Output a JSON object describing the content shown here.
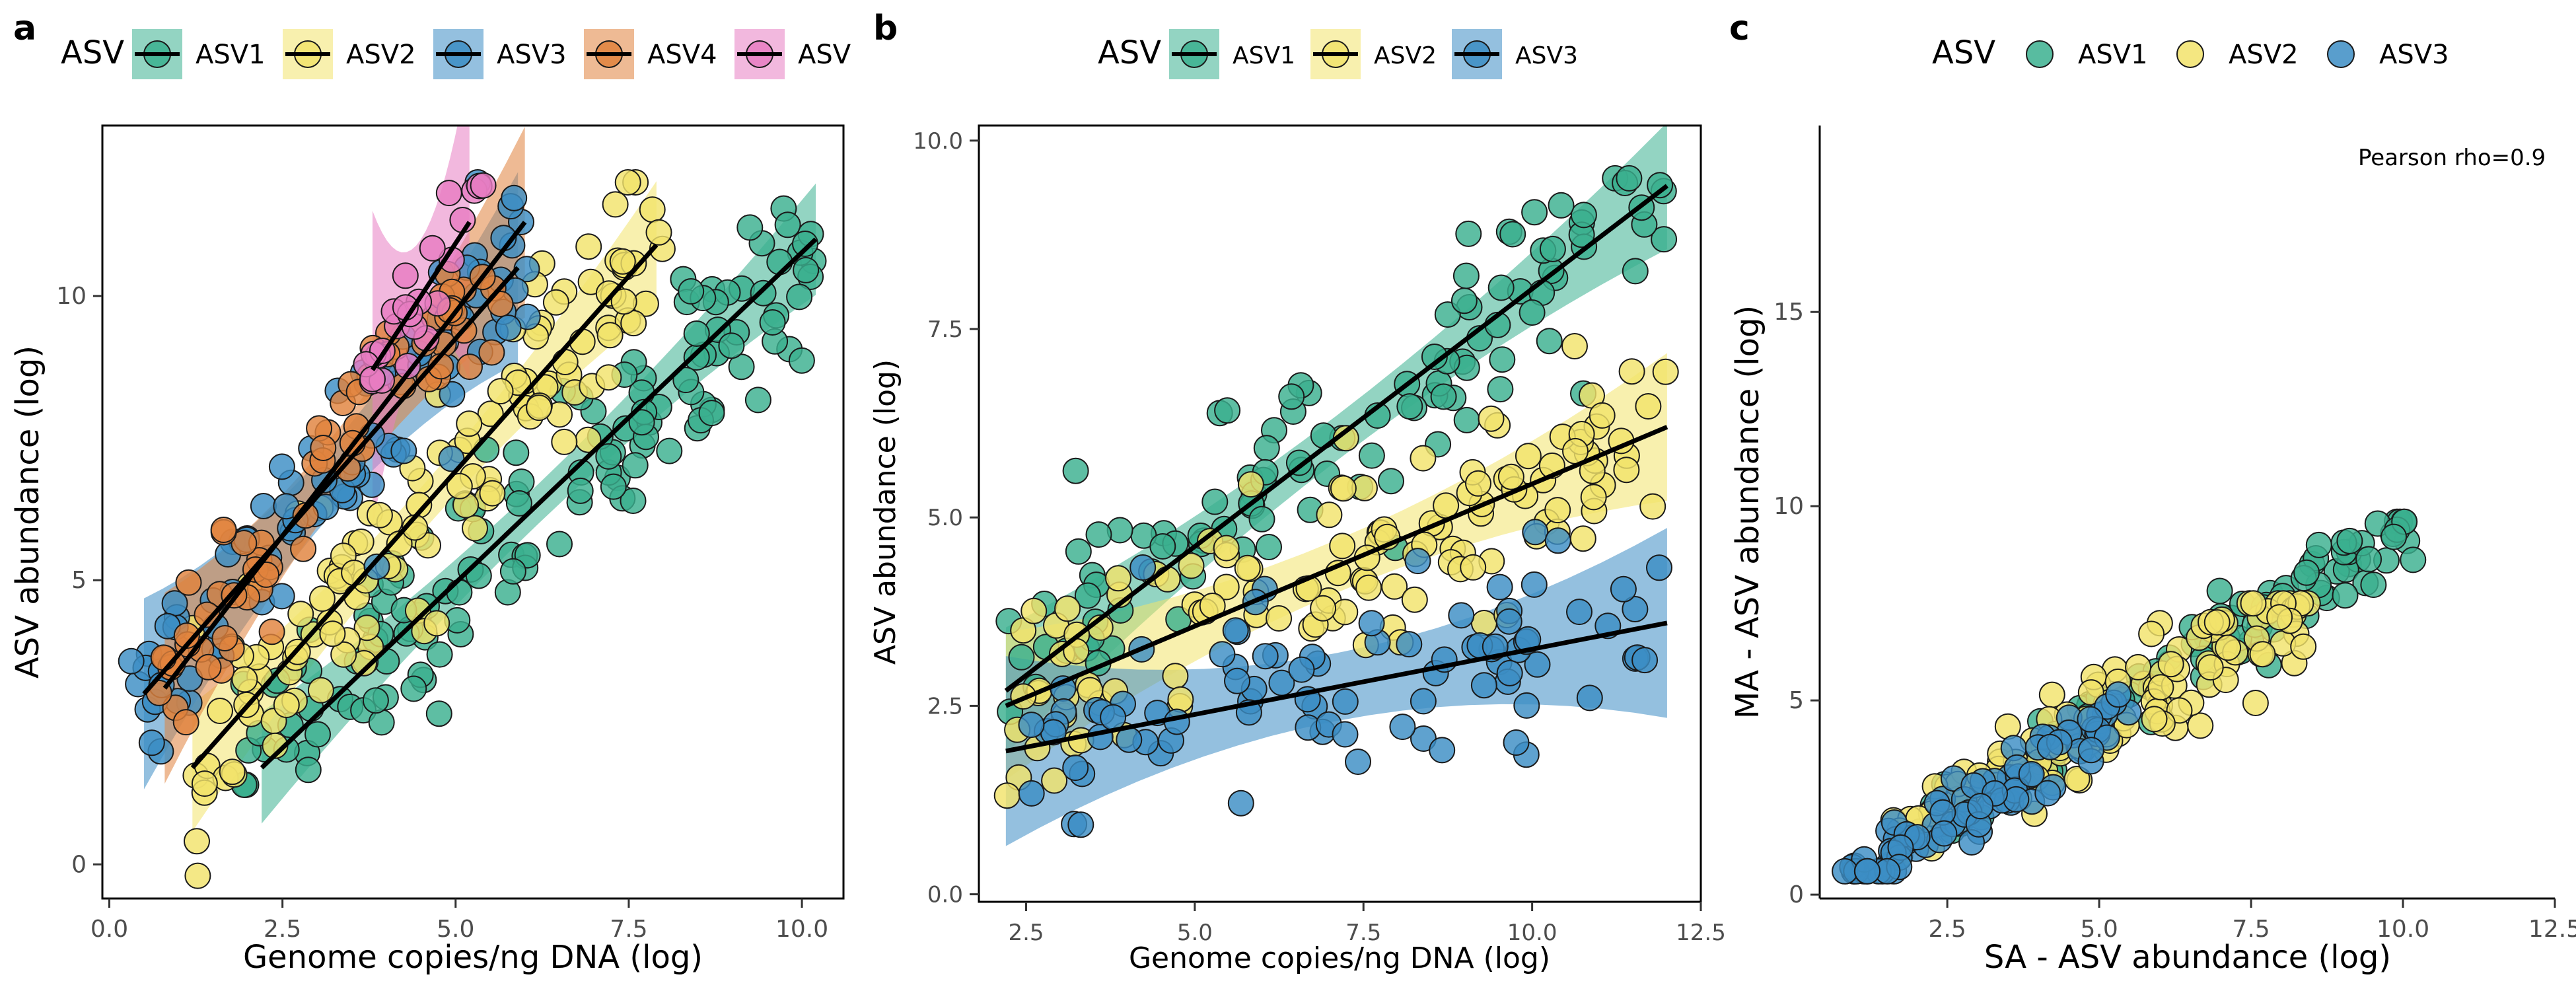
{
  "chart_data": [
    {
      "panel": "a",
      "type": "scatter",
      "xlabel": "Genome copies/ng DNA (log)",
      "ylabel": "ASV abundance (log)",
      "xlim": [
        -0.1,
        10.6
      ],
      "ylim": [
        -0.6,
        13.0
      ],
      "xticks": [
        0.0,
        2.5,
        5.0,
        7.5,
        10.0
      ],
      "xtick_labels": [
        "0.0",
        "2.5",
        "5.0",
        "7.5",
        "10.0"
      ],
      "yticks": [
        0,
        5,
        10
      ],
      "ytick_labels": [
        "0",
        "5",
        "10"
      ],
      "grid": false,
      "legend": {
        "title": "ASV",
        "position": "top",
        "entries": [
          "ASV1",
          "ASV2",
          "ASV3",
          "ASV4",
          "ASV"
        ]
      },
      "series": [
        {
          "name": "ASV1",
          "color": "#3BB08F",
          "fit": {
            "x0": 2.2,
            "y0": 1.7,
            "x1": 10.2,
            "y1": 11.0
          },
          "band": 0.35,
          "n": 140,
          "xrange": [
            1.9,
            10.2
          ],
          "yrange": [
            1.4,
            12.0
          ],
          "spread": 1.4
        },
        {
          "name": "ASV2",
          "color": "#F2E36B",
          "fit": {
            "x0": 1.2,
            "y0": 1.7,
            "x1": 7.9,
            "y1": 10.9
          },
          "band": 0.4,
          "n": 130,
          "xrange": [
            1.2,
            8.0
          ],
          "yrange": [
            -0.2,
            12.0
          ],
          "spread": 1.5
        },
        {
          "name": "ASV3",
          "color": "#3C8DC4",
          "fit": {
            "x0": 0.5,
            "y0": 3.0,
            "x1": 5.9,
            "y1": 10.5
          },
          "band": 0.6,
          "n": 90,
          "xrange": [
            0.3,
            6.2
          ],
          "yrange": [
            -0.3,
            12.0
          ],
          "spread": 1.4
        },
        {
          "name": "ASV4",
          "color": "#E0823D",
          "fit": {
            "x0": 0.8,
            "y0": 3.1,
            "x1": 6.0,
            "y1": 11.3
          },
          "band": 0.6,
          "n": 70,
          "xrange": [
            0.7,
            5.8
          ],
          "yrange": [
            1.4,
            12.0
          ],
          "spread": 1.0
        },
        {
          "name": "ASV",
          "color": "#E87DC2",
          "fit": {
            "x0": 3.8,
            "y0": 8.7,
            "x1": 5.2,
            "y1": 11.3
          },
          "band": 1.0,
          "n": 25,
          "xrange": [
            3.6,
            5.4
          ],
          "yrange": [
            8.5,
            12.0
          ],
          "spread": 0.8
        }
      ]
    },
    {
      "panel": "b",
      "type": "scatter",
      "xlabel": "Genome copies/ng DNA (log)",
      "ylabel": "ASV abundance (log)",
      "xlim": [
        1.8,
        12.5
      ],
      "ylim": [
        -0.1,
        10.2
      ],
      "xticks": [
        2.5,
        5.0,
        7.5,
        10.0,
        12.5
      ],
      "xtick_labels": [
        "2.5",
        "5.0",
        "7.5",
        "10.0",
        "12.5"
      ],
      "yticks": [
        0.0,
        2.5,
        5.0,
        7.5,
        10.0
      ],
      "ytick_labels": [
        "0.0",
        "2.5",
        "5.0",
        "7.5",
        "10.0"
      ],
      "grid": false,
      "legend": {
        "title": "ASV",
        "position": "top",
        "entries": [
          "ASV1",
          "ASV2",
          "ASV3"
        ]
      },
      "series": [
        {
          "name": "ASV1",
          "color": "#3BB08F",
          "fit": {
            "x0": 2.2,
            "y0": 2.7,
            "x1": 12.0,
            "y1": 9.4
          },
          "band": 0.3,
          "n": 110,
          "xrange": [
            2.2,
            12.0
          ],
          "yrange": [
            0.7,
            9.5
          ],
          "spread": 1.2
        },
        {
          "name": "ASV2",
          "color": "#F2E36B",
          "fit": {
            "x0": 2.2,
            "y0": 2.5,
            "x1": 12.0,
            "y1": 6.2
          },
          "band": 0.35,
          "n": 130,
          "xrange": [
            2.2,
            12.0
          ],
          "yrange": [
            0.9,
            7.8
          ],
          "spread": 1.1
        },
        {
          "name": "ASV3",
          "color": "#3C8DC4",
          "fit": {
            "x0": 2.2,
            "y0": 1.9,
            "x1": 12.0,
            "y1": 3.6
          },
          "band": 0.45,
          "n": 90,
          "xrange": [
            2.5,
            12.0
          ],
          "yrange": [
            0.4,
            5.0
          ],
          "spread": 1.1
        }
      ]
    },
    {
      "panel": "c",
      "type": "scatter",
      "xlabel": "SA - ASV abundance (log)",
      "ylabel": "MA - ASV abundance (log)",
      "xlim": [
        0.4,
        12.5
      ],
      "ylim": [
        -0.1,
        19.8
      ],
      "xticks": [
        2.5,
        5.0,
        7.5,
        10.0,
        12.5
      ],
      "xtick_labels": [
        "2.5",
        "5.0",
        "7.5",
        "10.0",
        "12.5"
      ],
      "yticks": [
        0,
        5,
        10,
        15
      ],
      "ytick_labels": [
        "0",
        "5",
        "10",
        "15"
      ],
      "grid": false,
      "annotation": "Pearson rho=0.9",
      "legend": {
        "title": "ASV",
        "position": "top",
        "entries": [
          "ASV1",
          "ASV2",
          "ASV3"
        ]
      },
      "series": [
        {
          "name": "ASV1",
          "color": "#3BB08F",
          "n": 110,
          "xrange": [
            2.0,
            10.2
          ],
          "slope": 0.98,
          "intercept": -0.3,
          "spread": 0.5,
          "yrange": [
            1.5,
            9.6
          ]
        },
        {
          "name": "ASV2",
          "color": "#F2E36B",
          "n": 130,
          "xrange": [
            1.6,
            8.5
          ],
          "slope": 0.92,
          "intercept": -0.2,
          "spread": 0.7,
          "yrange": [
            1.0,
            7.5
          ]
        },
        {
          "name": "ASV3",
          "color": "#3C8DC4",
          "n": 90,
          "xrange": [
            0.8,
            5.5
          ],
          "slope": 0.95,
          "intercept": -0.6,
          "spread": 0.5,
          "yrange": [
            0.6,
            5.5
          ]
        }
      ]
    }
  ],
  "panel_labels": [
    "a",
    "b",
    "c"
  ]
}
